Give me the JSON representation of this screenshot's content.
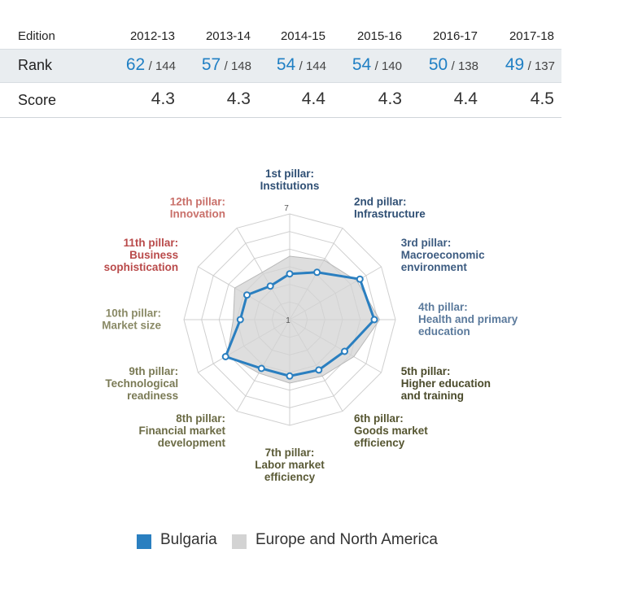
{
  "table": {
    "headers": {
      "label": "Edition",
      "cols": [
        "2012-13",
        "2013-14",
        "2014-15",
        "2015-16",
        "2016-17",
        "2017-18"
      ]
    },
    "rank": {
      "label": "Rank",
      "values": [
        "62",
        "57",
        "54",
        "54",
        "50",
        "49"
      ],
      "totals": [
        "/ 144",
        "/ 148",
        "/ 144",
        "/ 140",
        "/ 138",
        "/ 137"
      ]
    },
    "score": {
      "label": "Score",
      "values": [
        "4.3",
        "4.3",
        "4.4",
        "4.3",
        "4.4",
        "4.5"
      ]
    }
  },
  "chart_data": {
    "type": "radar",
    "scale": {
      "min": 1,
      "max": 7,
      "min_label": "1",
      "max_label": "7"
    },
    "axes": [
      {
        "label": [
          "1st pillar:",
          "Institutions"
        ],
        "color": "#2f4f74"
      },
      {
        "label": [
          "2nd pillar:",
          "Infrastructure"
        ],
        "color": "#2f4f74"
      },
      {
        "label": [
          "3rd pillar:",
          "Macroeconomic",
          "environment"
        ],
        "color": "#3c5b80"
      },
      {
        "label": [
          "4th pillar:",
          "Health and primary",
          "education"
        ],
        "color": "#5b7a9c"
      },
      {
        "label": [
          "5th pillar:",
          "Higher education",
          "and training"
        ],
        "color": "#4a4a2a"
      },
      {
        "label": [
          "6th pillar:",
          "Goods market",
          "efficiency"
        ],
        "color": "#555530"
      },
      {
        "label": [
          "7th pillar:",
          "Labor market",
          "efficiency"
        ],
        "color": "#5a5a36"
      },
      {
        "label": [
          "8th pillar:",
          "Financial market",
          "development"
        ],
        "color": "#6b6b45"
      },
      {
        "label": [
          "9th pillar:",
          "Technological",
          "readiness"
        ],
        "color": "#7a7a55"
      },
      {
        "label": [
          "10th pillar:",
          "Market size"
        ],
        "color": "#8a8a66"
      },
      {
        "label": [
          "11th pillar:",
          "Business",
          "sophistication"
        ],
        "color": "#b94a4a"
      },
      {
        "label": [
          "12th pillar:",
          "Innovation"
        ],
        "color": "#c9706a"
      }
    ],
    "series": [
      {
        "name": "Europe and North America",
        "values": [
          4.6,
          4.9,
          5.4,
          6.1,
          5.2,
          4.7,
          4.6,
          4.5,
          5.1,
          4.2,
          4.6,
          4.1
        ],
        "color": "#d3d3d3"
      },
      {
        "name": "Bulgaria",
        "values": [
          3.6,
          4.1,
          5.6,
          5.8,
          4.6,
          4.3,
          4.2,
          4.2,
          5.2,
          3.8,
          3.8,
          3.2
        ],
        "color": "#2a7fc0"
      }
    ]
  },
  "legend": {
    "items": [
      "Bulgaria",
      "Europe and North America"
    ]
  }
}
